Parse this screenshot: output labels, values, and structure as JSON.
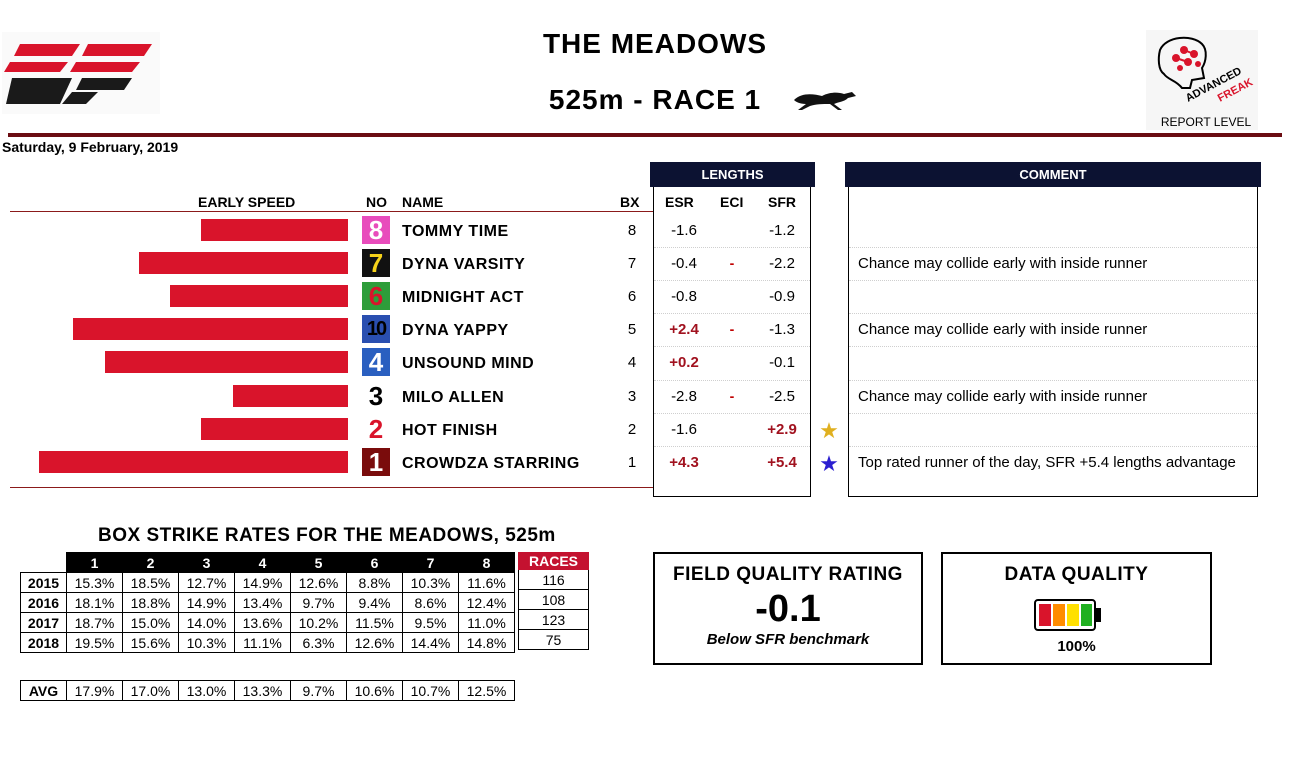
{
  "header": {
    "logo_text": "SF",
    "track": "THE MEADOWS",
    "race": "525m - RACE 1",
    "badge_text": "ADVANCED FREAK",
    "report_level_label": "REPORT LEVEL",
    "date": "Saturday, 9 February, 2019"
  },
  "columns": {
    "early_speed": "EARLY SPEED",
    "no": "NO",
    "name": "NAME",
    "bx": "BX",
    "lengths": "LENGTHS",
    "esr": "ESR",
    "eci": "ECI",
    "sfr": "SFR",
    "comment": "COMMENT"
  },
  "runners": [
    {
      "no": "8",
      "name": "TOMMY TIME",
      "bx": "8",
      "esr": "-1.6",
      "eci": "",
      "sfr": "-1.2",
      "star": "",
      "comment": "",
      "early_speed": 0.47,
      "rug_bg": "#e84cbc",
      "rug_fg": "#ffffff"
    },
    {
      "no": "7",
      "name": "DYNA VARSITY",
      "bx": "7",
      "esr": "-0.4",
      "eci": "-",
      "sfr": "-2.2",
      "star": "",
      "comment": "Chance may collide early with inside runner",
      "early_speed": 0.67,
      "rug_bg": "#111111",
      "rug_fg": "#f6d21a"
    },
    {
      "no": "6",
      "name": "MIDNIGHT ACT",
      "bx": "6",
      "esr": "-0.8",
      "eci": "",
      "sfr": "-0.9",
      "star": "",
      "comment": "",
      "early_speed": 0.57,
      "rug_bg": "#2e9d3a",
      "rug_fg": "#d9142b"
    },
    {
      "no": "10",
      "name": "DYNA YAPPY",
      "bx": "5",
      "esr": "+2.4",
      "eci": "-",
      "sfr": "-1.3",
      "star": "",
      "comment": "Chance may collide early with inside runner",
      "early_speed": 0.88,
      "rug_bg": "#2a4fb0",
      "rug_fg": "#000000"
    },
    {
      "no": "4",
      "name": "UNSOUND MIND",
      "bx": "4",
      "esr": "+0.2",
      "eci": "",
      "sfr": "-0.1",
      "star": "",
      "comment": "",
      "early_speed": 0.78,
      "rug_bg": "#2a5fc0",
      "rug_fg": "#ffffff"
    },
    {
      "no": "3",
      "name": "MILO ALLEN",
      "bx": "3",
      "esr": "-2.8",
      "eci": "-",
      "sfr": "-2.5",
      "star": "",
      "comment": "Chance may collide early with inside runner",
      "early_speed": 0.37,
      "rug_bg": "#ffffff",
      "rug_fg": "#000000"
    },
    {
      "no": "2",
      "name": "HOT FINISH",
      "bx": "2",
      "esr": "-1.6",
      "eci": "",
      "sfr": "+2.9",
      "star": "gold",
      "comment": "",
      "early_speed": 0.47,
      "rug_bg": "#ffffff",
      "rug_fg": "#d9142b"
    },
    {
      "no": "1",
      "name": "CROWDZA STARRING",
      "bx": "1",
      "esr": "+4.3",
      "eci": "",
      "sfr": "+5.4",
      "star": "blue",
      "comment": "Top rated runner of the day, SFR +5.4 lengths advantage",
      "early_speed": 0.99,
      "rug_bg": "#7a0c0c",
      "rug_fg": "#ffffff"
    }
  ],
  "box_strike": {
    "title": "BOX STRIKE RATES FOR THE MEADOWS, 525m",
    "boxes": [
      "1",
      "2",
      "3",
      "4",
      "5",
      "6",
      "7",
      "8"
    ],
    "races_label": "RACES",
    "rows": [
      {
        "year": "2015",
        "values": [
          "15.3%",
          "18.5%",
          "12.7%",
          "14.9%",
          "12.6%",
          "8.8%",
          "10.3%",
          "11.6%"
        ],
        "races": "116"
      },
      {
        "year": "2016",
        "values": [
          "18.1%",
          "18.8%",
          "14.9%",
          "13.4%",
          "9.7%",
          "9.4%",
          "8.6%",
          "12.4%"
        ],
        "races": "108"
      },
      {
        "year": "2017",
        "values": [
          "18.7%",
          "15.0%",
          "14.0%",
          "13.6%",
          "10.2%",
          "11.5%",
          "9.5%",
          "11.0%"
        ],
        "races": "123"
      },
      {
        "year": "2018",
        "values": [
          "19.5%",
          "15.6%",
          "10.3%",
          "11.1%",
          "6.3%",
          "12.6%",
          "14.4%",
          "14.8%"
        ],
        "races": "75"
      }
    ],
    "avg": {
      "label": "AVG",
      "values": [
        "17.9%",
        "17.0%",
        "13.0%",
        "13.3%",
        "9.7%",
        "10.6%",
        "10.7%",
        "12.5%"
      ]
    }
  },
  "field_quality": {
    "title": "FIELD QUALITY RATING",
    "value": "-0.1",
    "subtitle": "Below SFR benchmark"
  },
  "data_quality": {
    "title": "DATA QUALITY",
    "percent": "100%",
    "level": 1.0
  },
  "colors": {
    "bar": "#d9142b",
    "header_navy": "#0c1232",
    "rule": "#6b0d12",
    "positive": "#a1121f",
    "star_gold": "#e0b020",
    "star_blue": "#2b1fd0"
  }
}
